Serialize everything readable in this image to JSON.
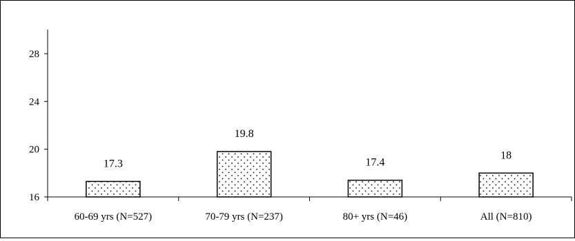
{
  "chart_data": {
    "type": "bar",
    "title": "",
    "xlabel": "",
    "ylabel": "",
    "categories": [
      "60-69 yrs (N=527)",
      "70-79 yrs (N=237)",
      "80+ yrs (N=46)",
      "All (N=810)"
    ],
    "values": [
      17.3,
      19.8,
      17.4,
      18
    ],
    "data_labels": [
      "17.3",
      "19.8",
      "17.4",
      "18"
    ],
    "ylim": [
      16,
      30
    ],
    "yticks": [
      16,
      20,
      24,
      28
    ],
    "ytick_labels": [
      "16",
      "20",
      "24",
      "28"
    ],
    "grid": false,
    "legend": "none",
    "bar_fill": "dotted pattern",
    "colors": {
      "bar_fill": "#ffffff",
      "bar_dots": "#000000",
      "bar_stroke": "#000000",
      "axis": "#000000"
    }
  }
}
